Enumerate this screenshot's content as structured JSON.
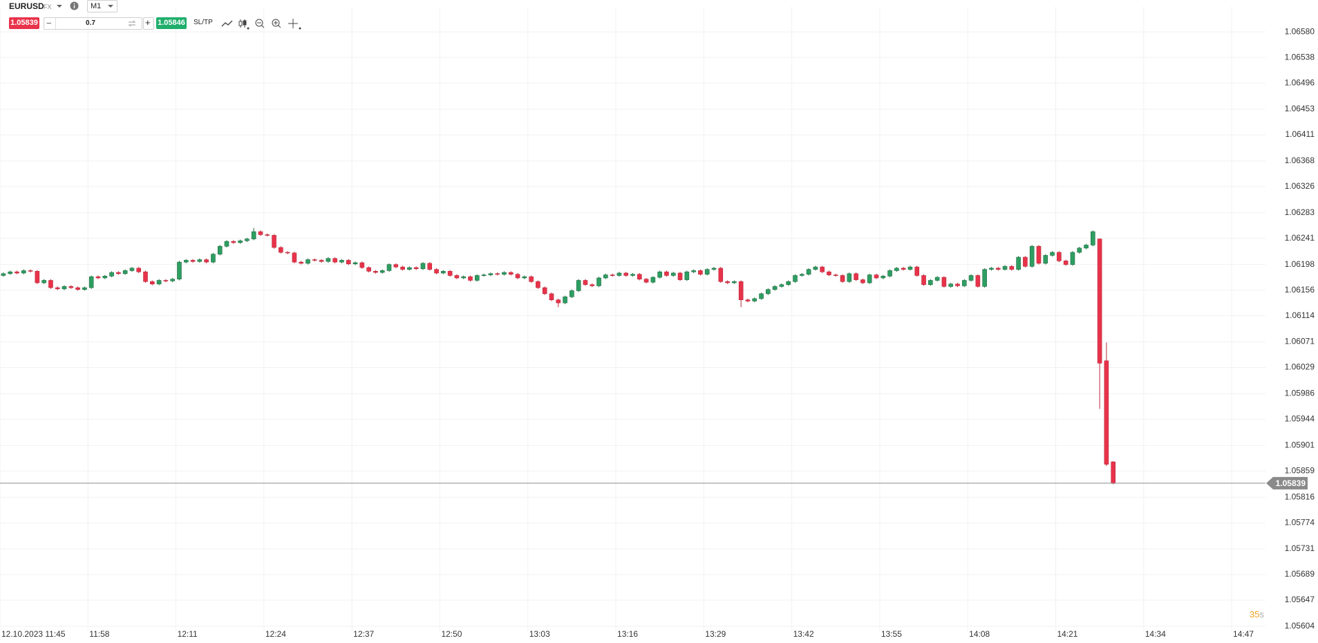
{
  "toolbar": {
    "symbol": "EURUSD",
    "market": "FX",
    "timeframe": "M1",
    "sell_price": "1.05839",
    "volume": "0.7",
    "buy_price": "1.05846",
    "sl_tp": "SL/TP"
  },
  "countdown": {
    "value": "35",
    "unit": "s"
  },
  "chart_data": {
    "type": "candlestick",
    "x": [
      "11:45",
      "11:46",
      "11:47",
      "11:48",
      "11:49",
      "11:50",
      "11:51",
      "11:52",
      "11:53",
      "11:54",
      "11:55",
      "11:56",
      "11:57",
      "11:58",
      "11:59",
      "12:00",
      "12:01",
      "12:02",
      "12:03",
      "12:04",
      "12:05",
      "12:06",
      "12:07",
      "12:08",
      "12:09",
      "12:10",
      "12:11",
      "12:12",
      "12:13",
      "12:14",
      "12:15",
      "12:16",
      "12:17",
      "12:18",
      "12:19",
      "12:20",
      "12:21",
      "12:22",
      "12:23",
      "12:24",
      "12:25",
      "12:26",
      "12:27",
      "12:28",
      "12:29",
      "12:30",
      "12:31",
      "12:32",
      "12:33",
      "12:34",
      "12:35",
      "12:36",
      "12:37",
      "12:38",
      "12:39",
      "12:40",
      "12:41",
      "12:42",
      "12:43",
      "12:44",
      "12:45",
      "12:46",
      "12:47",
      "12:48",
      "12:49",
      "12:50",
      "12:51",
      "12:52",
      "12:53",
      "12:54",
      "12:55",
      "12:56",
      "12:57",
      "12:58",
      "12:59",
      "13:00",
      "13:01",
      "13:02",
      "13:03",
      "13:04",
      "13:05",
      "13:06",
      "13:07",
      "13:08",
      "13:09",
      "13:10",
      "13:11",
      "13:12",
      "13:13",
      "13:14",
      "13:15",
      "13:16",
      "13:17",
      "13:18",
      "13:19",
      "13:20",
      "13:21",
      "13:22",
      "13:23",
      "13:24",
      "13:25",
      "13:26",
      "13:27",
      "13:28",
      "13:29",
      "13:30",
      "13:31",
      "13:32",
      "13:33",
      "13:34",
      "13:35",
      "13:36",
      "13:37",
      "13:38",
      "13:39",
      "13:40",
      "13:41",
      "13:42",
      "13:43",
      "13:44",
      "13:45",
      "13:46",
      "13:47",
      "13:48",
      "13:49",
      "13:50",
      "13:51",
      "13:52",
      "13:53",
      "13:54",
      "13:55",
      "13:56",
      "13:57",
      "13:58",
      "13:59",
      "14:00",
      "14:01",
      "14:02",
      "14:03",
      "14:04",
      "14:05",
      "14:06",
      "14:07",
      "14:08",
      "14:09",
      "14:10",
      "14:11",
      "14:12",
      "14:13",
      "14:14",
      "14:15",
      "14:16",
      "14:17",
      "14:18",
      "14:19",
      "14:20",
      "14:21",
      "14:22",
      "14:23",
      "14:24",
      "14:25",
      "14:26",
      "14:27",
      "14:28",
      "14:29"
    ],
    "open": [
      1.0618,
      1.06183,
      1.06186,
      1.06184,
      1.06188,
      1.06187,
      1.06168,
      1.06172,
      1.0616,
      1.06158,
      1.06162,
      1.0616,
      1.06157,
      1.0616,
      1.06178,
      1.06176,
      1.06179,
      1.06185,
      1.06183,
      1.06188,
      1.06192,
      1.06186,
      1.0617,
      1.06166,
      1.06172,
      1.06171,
      1.06174,
      1.06202,
      1.06205,
      1.06203,
      1.06206,
      1.06202,
      1.06215,
      1.06228,
      1.06236,
      1.06234,
      1.06237,
      1.0624,
      1.06252,
      1.06247,
      1.06246,
      1.06226,
      1.06218,
      1.06217,
      1.06202,
      1.062,
      1.06206,
      1.06205,
      1.06203,
      1.06208,
      1.06202,
      1.06205,
      1.06199,
      1.06201,
      1.06193,
      1.06187,
      1.06185,
      1.06188,
      1.06198,
      1.06194,
      1.0619,
      1.06193,
      1.06191,
      1.062,
      1.0619,
      1.06184,
      1.06187,
      1.0618,
      1.06176,
      1.06178,
      1.06172,
      1.0618,
      1.06181,
      1.06183,
      1.06182,
      1.06185,
      1.06182,
      1.06176,
      1.06178,
      1.0617,
      1.0616,
      1.0615,
      1.0614,
      1.06135,
      1.06145,
      1.06155,
      1.06172,
      1.06165,
      1.06163,
      1.06176,
      1.06181,
      1.0618,
      1.06184,
      1.0618,
      1.06182,
      1.06174,
      1.06169,
      1.06177,
      1.06186,
      1.0618,
      1.06184,
      1.06173,
      1.06186,
      1.06188,
      1.06182,
      1.0619,
      1.06192,
      1.0617,
      1.06168,
      1.0617,
      1.0614,
      1.06138,
      1.06142,
      1.0615,
      1.06157,
      1.06162,
      1.06165,
      1.0617,
      1.0618,
      1.06182,
      1.0619,
      1.06194,
      1.06186,
      1.06181,
      1.0618,
      1.0617,
      1.06183,
      1.06173,
      1.06168,
      1.06181,
      1.06176,
      1.06179,
      1.06188,
      1.06192,
      1.0619,
      1.06194,
      1.0618,
      1.06165,
      1.06172,
      1.06177,
      1.06162,
      1.06166,
      1.06163,
      1.06172,
      1.0618,
      1.06162,
      1.0619,
      1.06192,
      1.0619,
      1.06195,
      1.0619,
      1.0621,
      1.06195,
      1.06228,
      1.062,
      1.06213,
      1.06218,
      1.06204,
      1.06198,
      1.06218,
      1.06225,
      1.0623,
      1.0624,
      1.0604,
      1.05874
    ],
    "high": [
      1.06185,
      1.06188,
      1.06188,
      1.0619,
      1.0619,
      1.06189,
      1.06174,
      1.06174,
      1.06162,
      1.06164,
      1.06164,
      1.06162,
      1.06162,
      1.0618,
      1.0618,
      1.06181,
      1.06187,
      1.06187,
      1.0619,
      1.06194,
      1.06194,
      1.06188,
      1.06172,
      1.06174,
      1.06174,
      1.06176,
      1.06204,
      1.06207,
      1.06207,
      1.06208,
      1.06208,
      1.06217,
      1.0623,
      1.06238,
      1.06238,
      1.06239,
      1.06242,
      1.06258,
      1.06254,
      1.06249,
      1.06248,
      1.06228,
      1.0622,
      1.06219,
      1.06204,
      1.06208,
      1.06208,
      1.06207,
      1.0621,
      1.0621,
      1.06207,
      1.06207,
      1.06203,
      1.06203,
      1.06195,
      1.06189,
      1.0619,
      1.062,
      1.062,
      1.06196,
      1.06195,
      1.06195,
      1.06202,
      1.06202,
      1.06192,
      1.06189,
      1.06189,
      1.06182,
      1.0618,
      1.0618,
      1.06182,
      1.06183,
      1.06185,
      1.06185,
      1.06187,
      1.06187,
      1.06184,
      1.0618,
      1.0618,
      1.06172,
      1.06162,
      1.06152,
      1.06142,
      1.06147,
      1.06157,
      1.06174,
      1.06174,
      1.06167,
      1.06178,
      1.06183,
      1.06183,
      1.06186,
      1.06186,
      1.06184,
      1.06184,
      1.06176,
      1.06179,
      1.06188,
      1.06188,
      1.06186,
      1.06186,
      1.06188,
      1.0619,
      1.0619,
      1.06192,
      1.06194,
      1.06194,
      1.06172,
      1.06172,
      1.06172,
      1.06142,
      1.06144,
      1.06152,
      1.06159,
      1.06164,
      1.06167,
      1.06172,
      1.06182,
      1.06184,
      1.06192,
      1.06196,
      1.06196,
      1.06188,
      1.06183,
      1.06182,
      1.06185,
      1.06185,
      1.06175,
      1.06183,
      1.06183,
      1.06181,
      1.0619,
      1.06194,
      1.06194,
      1.06196,
      1.06196,
      1.06182,
      1.06174,
      1.06179,
      1.06179,
      1.06168,
      1.06168,
      1.06174,
      1.06182,
      1.06182,
      1.06192,
      1.06194,
      1.06194,
      1.06197,
      1.06197,
      1.06212,
      1.06212,
      1.0623,
      1.0623,
      1.06215,
      1.0622,
      1.0622,
      1.06206,
      1.0622,
      1.06227,
      1.06232,
      1.06254,
      1.06241,
      1.0607,
      1.05875
    ],
    "low": [
      1.06178,
      1.06181,
      1.06182,
      1.06182,
      1.06185,
      1.06166,
      1.06166,
      1.06158,
      1.06156,
      1.06156,
      1.06158,
      1.06155,
      1.06155,
      1.06158,
      1.06174,
      1.06174,
      1.06177,
      1.06181,
      1.06181,
      1.06186,
      1.06184,
      1.06168,
      1.06164,
      1.06164,
      1.06169,
      1.06169,
      1.06172,
      1.062,
      1.06201,
      1.06201,
      1.062,
      1.062,
      1.06213,
      1.06226,
      1.06232,
      1.06232,
      1.06235,
      1.06238,
      1.06245,
      1.06244,
      1.06224,
      1.06216,
      1.06215,
      1.062,
      1.06198,
      1.06198,
      1.06203,
      1.06201,
      1.06201,
      1.062,
      1.062,
      1.06197,
      1.06197,
      1.06191,
      1.06185,
      1.06183,
      1.06183,
      1.06186,
      1.06192,
      1.06188,
      1.06188,
      1.06189,
      1.06189,
      1.06188,
      1.06182,
      1.06182,
      1.06178,
      1.06174,
      1.06174,
      1.0617,
      1.0617,
      1.06178,
      1.06179,
      1.0618,
      1.0618,
      1.0618,
      1.06174,
      1.06174,
      1.06168,
      1.06158,
      1.06148,
      1.06138,
      1.06128,
      1.06133,
      1.06143,
      1.06153,
      1.06163,
      1.06161,
      1.06161,
      1.06174,
      1.06178,
      1.06178,
      1.06178,
      1.06178,
      1.06172,
      1.06167,
      1.06167,
      1.06175,
      1.06178,
      1.06178,
      1.06171,
      1.06171,
      1.06184,
      1.0618,
      1.0618,
      1.06188,
      1.06168,
      1.06166,
      1.06166,
      1.06128,
      1.06136,
      1.06136,
      1.0614,
      1.06148,
      1.06155,
      1.0616,
      1.06163,
      1.06168,
      1.06178,
      1.0618,
      1.06188,
      1.06184,
      1.06179,
      1.06178,
      1.06168,
      1.06168,
      1.06171,
      1.06166,
      1.06166,
      1.06174,
      1.06174,
      1.06177,
      1.06186,
      1.06188,
      1.06188,
      1.06178,
      1.06163,
      1.06163,
      1.0617,
      1.0616,
      1.0616,
      1.06161,
      1.06161,
      1.0617,
      1.0616,
      1.0616,
      1.06188,
      1.06188,
      1.06188,
      1.06188,
      1.06188,
      1.06193,
      1.06193,
      1.06198,
      1.06198,
      1.06211,
      1.06202,
      1.06196,
      1.06196,
      1.06216,
      1.06223,
      1.06228,
      1.05961,
      1.05867,
      1.05837
    ],
    "close": [
      1.06183,
      1.06186,
      1.06184,
      1.06188,
      1.06187,
      1.06168,
      1.06172,
      1.0616,
      1.06158,
      1.06162,
      1.0616,
      1.06157,
      1.0616,
      1.06178,
      1.06176,
      1.06179,
      1.06185,
      1.06183,
      1.06188,
      1.06192,
      1.06186,
      1.0617,
      1.06166,
      1.06172,
      1.06171,
      1.06174,
      1.06202,
      1.06205,
      1.06203,
      1.06206,
      1.06202,
      1.06215,
      1.06228,
      1.06236,
      1.06234,
      1.06237,
      1.0624,
      1.06252,
      1.06247,
      1.06246,
      1.06226,
      1.06218,
      1.06217,
      1.06202,
      1.062,
      1.06206,
      1.06205,
      1.06203,
      1.06208,
      1.06202,
      1.06205,
      1.06199,
      1.06201,
      1.06193,
      1.06187,
      1.06185,
      1.06188,
      1.06198,
      1.06194,
      1.0619,
      1.06193,
      1.06191,
      1.062,
      1.0619,
      1.06184,
      1.06187,
      1.0618,
      1.06176,
      1.06178,
      1.06172,
      1.0618,
      1.06181,
      1.06183,
      1.06182,
      1.06185,
      1.06182,
      1.06176,
      1.06178,
      1.0617,
      1.0616,
      1.0615,
      1.0614,
      1.06135,
      1.06145,
      1.06155,
      1.06172,
      1.06165,
      1.06163,
      1.06176,
      1.06181,
      1.0618,
      1.06184,
      1.0618,
      1.06182,
      1.06174,
      1.06169,
      1.06177,
      1.06186,
      1.0618,
      1.06184,
      1.06173,
      1.06186,
      1.06188,
      1.06182,
      1.0619,
      1.06192,
      1.0617,
      1.06168,
      1.0617,
      1.0614,
      1.06138,
      1.06142,
      1.0615,
      1.06157,
      1.06162,
      1.06165,
      1.0617,
      1.0618,
      1.06182,
      1.0619,
      1.06194,
      1.06186,
      1.06181,
      1.0618,
      1.0617,
      1.06183,
      1.06173,
      1.06168,
      1.06181,
      1.06176,
      1.06179,
      1.06188,
      1.06192,
      1.0619,
      1.06194,
      1.0618,
      1.06165,
      1.06172,
      1.06177,
      1.06162,
      1.06166,
      1.06163,
      1.06172,
      1.0618,
      1.06162,
      1.0619,
      1.06192,
      1.0619,
      1.06195,
      1.0619,
      1.0621,
      1.06195,
      1.06228,
      1.062,
      1.06213,
      1.06218,
      1.06204,
      1.06198,
      1.06218,
      1.06225,
      1.0623,
      1.06252,
      1.06036,
      1.0587,
      1.05839
    ],
    "up_color": "#2e9e62",
    "down_color": "#e8334a",
    "last_price_color": "#8a8a8a",
    "xlim": [
      "11:45",
      "14:52"
    ],
    "xticks": [
      {
        "value": "11:45",
        "label": "12.10.2023 11:45"
      },
      "11:58",
      "12:11",
      "12:24",
      "12:37",
      "12:50",
      "13:03",
      "13:16",
      "13:29",
      "13:42",
      "13:55",
      "14:08",
      "14:21",
      "14:34",
      "14:47"
    ],
    "ylim": [
      1.05597,
      1.06621
    ],
    "yticks": [
      {
        "value": 1.0658,
        "label": "1.06580"
      },
      1.06538,
      1.06496,
      1.06453,
      1.06411,
      1.06368,
      1.06326,
      1.06283,
      1.06241,
      1.06198,
      1.06156,
      1.06114,
      1.06071,
      1.06029,
      1.05986,
      1.05944,
      1.05901,
      1.05859,
      1.05816,
      1.05774,
      1.05731,
      1.05689,
      1.05647,
      1.05604
    ],
    "grid": true
  }
}
